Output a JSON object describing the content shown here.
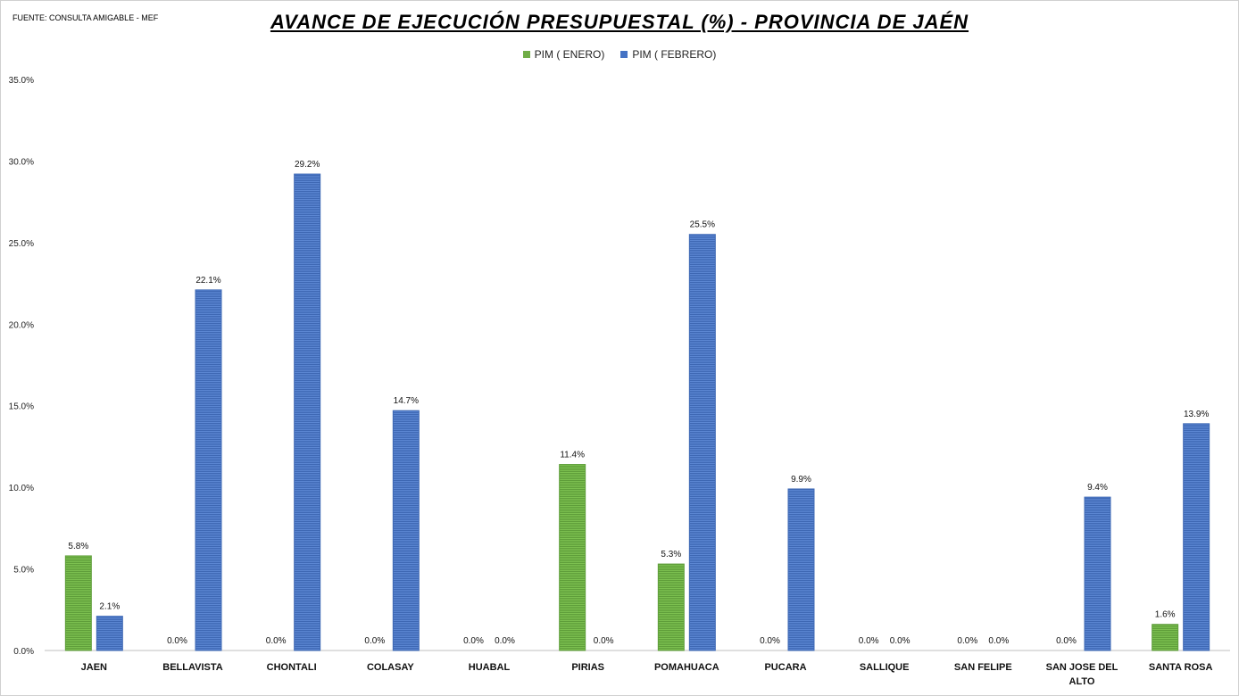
{
  "source": "FUENTE: CONSULTA AMIGABLE - MEF",
  "chart_data": {
    "type": "bar",
    "title": "AVANCE DE EJECUCIÓN PRESUPUESTAL (%) - PROVINCIA DE JAÉN",
    "xlabel": "",
    "ylabel": "",
    "ylim": [
      0,
      35
    ],
    "yticks": [
      "0.0%",
      "5.0%",
      "10.0%",
      "15.0%",
      "20.0%",
      "25.0%",
      "30.0%",
      "35.0%"
    ],
    "grid": false,
    "legend_position": "top-center",
    "categories": [
      [
        "JAEN"
      ],
      [
        "BELLAVISTA"
      ],
      [
        "CHONTALI"
      ],
      [
        "COLASAY"
      ],
      [
        "HUABAL"
      ],
      [
        "PIRIAS"
      ],
      [
        "POMAHUACA"
      ],
      [
        "PUCARA"
      ],
      [
        "SALLIQUE"
      ],
      [
        "SAN FELIPE"
      ],
      [
        "SAN JOSE DEL",
        "ALTO"
      ],
      [
        "SANTA ROSA"
      ]
    ],
    "series": [
      {
        "name": "PIM ( ENERO)",
        "color": "#70ad47",
        "values": [
          5.8,
          0.0,
          0.0,
          0.0,
          0.0,
          11.4,
          5.3,
          0.0,
          0.0,
          0.0,
          0.0,
          1.6
        ],
        "labels": [
          "5.8%",
          "0.0%",
          "0.0%",
          "0.0%",
          "0.0%",
          "11.4%",
          "5.3%",
          "0.0%",
          "0.0%",
          "0.0%",
          "0.0%",
          "1.6%"
        ]
      },
      {
        "name": "PIM ( FEBRERO)",
        "color": "#4472c4",
        "values": [
          2.1,
          22.1,
          29.2,
          14.7,
          0.0,
          0.0,
          25.5,
          9.9,
          0.0,
          0.0,
          9.4,
          13.9
        ],
        "labels": [
          "2.1%",
          "22.1%",
          "29.2%",
          "14.7%",
          "0.0%",
          "0.0%",
          "25.5%",
          "9.9%",
          "0.0%",
          "0.0%",
          "9.4%",
          "13.9%"
        ]
      }
    ]
  }
}
